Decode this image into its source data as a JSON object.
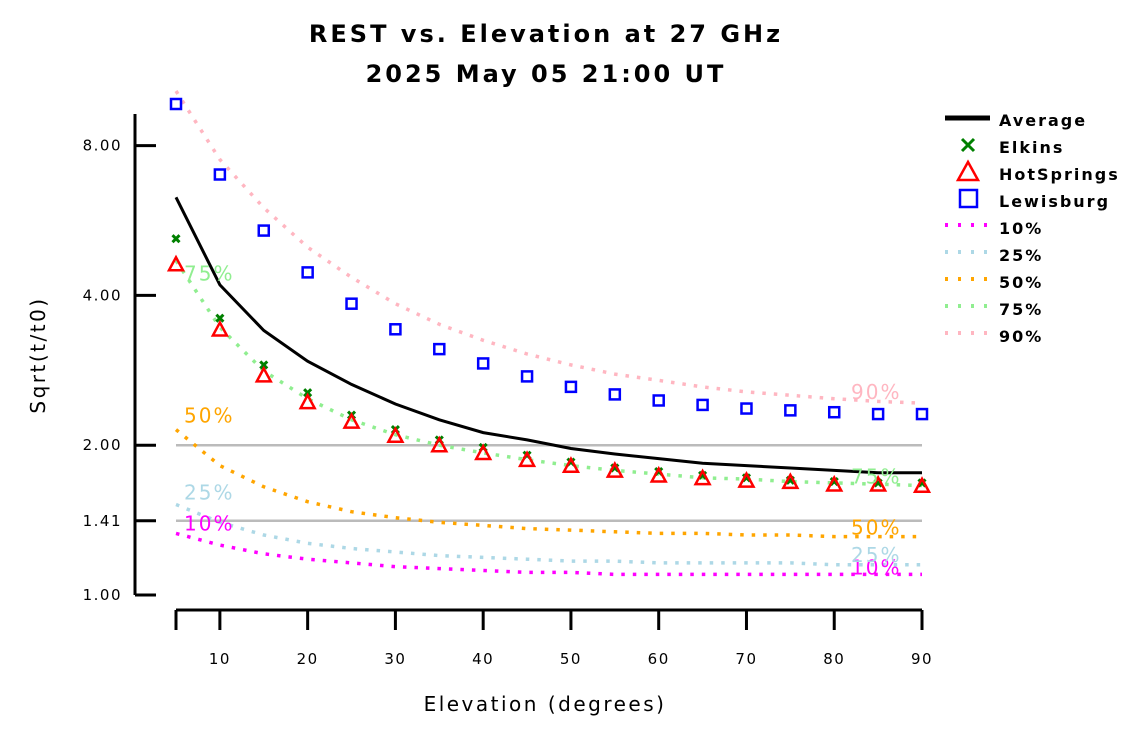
{
  "chart_data": {
    "type": "line",
    "title": "REST vs. Elevation at 27 GHz",
    "subtitle": "2025 May 05 21:00 UT",
    "xlabel": "Elevation (degrees)",
    "ylabel": "Sqrt(t/t0)",
    "y_scale": "log",
    "xlim": [
      2,
      92
    ],
    "ylim": [
      1.0,
      9.7
    ],
    "x_ticks": [
      10,
      20,
      30,
      40,
      50,
      60,
      70,
      80,
      90
    ],
    "x_tick_labels": [
      "10",
      "20",
      "30",
      "40",
      "50",
      "60",
      "70",
      "80",
      "90"
    ],
    "y_ticks": [
      1.0,
      1.41,
      2.0,
      4.0,
      8.0
    ],
    "y_tick_labels": [
      "1.00",
      "1.41",
      "2.00",
      "4.00",
      "8.00"
    ],
    "reference_lines": [
      1.41,
      2.0
    ],
    "legend_position": "right",
    "x": [
      5,
      10,
      15,
      20,
      25,
      30,
      35,
      40,
      45,
      50,
      55,
      60,
      65,
      70,
      75,
      80,
      85,
      90
    ],
    "series": [
      {
        "name": "Average",
        "style": "line",
        "color": "#000000",
        "values": [
          6.3,
          4.2,
          3.4,
          2.95,
          2.65,
          2.42,
          2.25,
          2.12,
          2.05,
          1.97,
          1.92,
          1.88,
          1.84,
          1.82,
          1.8,
          1.78,
          1.76,
          1.76
        ]
      },
      {
        "name": "Elkins",
        "style": "marker",
        "marker": "x",
        "color": "#008000",
        "values": [
          5.2,
          3.6,
          2.9,
          2.55,
          2.3,
          2.15,
          2.05,
          1.98,
          1.91,
          1.85,
          1.8,
          1.77,
          1.74,
          1.72,
          1.7,
          1.69,
          1.68,
          1.68
        ]
      },
      {
        "name": "HotSprings",
        "style": "marker",
        "marker": "triangle",
        "color": "#ff0000",
        "values": [
          4.6,
          3.4,
          2.75,
          2.43,
          2.22,
          2.08,
          1.99,
          1.92,
          1.86,
          1.81,
          1.77,
          1.73,
          1.71,
          1.69,
          1.68,
          1.66,
          1.66,
          1.65
        ]
      },
      {
        "name": "Lewisburg",
        "style": "marker",
        "marker": "square",
        "color": "#0000ff",
        "values": [
          9.7,
          7.0,
          5.4,
          4.45,
          3.85,
          3.42,
          3.12,
          2.92,
          2.75,
          2.62,
          2.53,
          2.46,
          2.41,
          2.37,
          2.35,
          2.33,
          2.31,
          2.31
        ]
      },
      {
        "name": "10%",
        "style": "dotted",
        "color": "#ff00ff",
        "label": "10%",
        "values": [
          1.33,
          1.26,
          1.21,
          1.18,
          1.16,
          1.14,
          1.13,
          1.12,
          1.11,
          1.11,
          1.1,
          1.1,
          1.1,
          1.1,
          1.1,
          1.1,
          1.1,
          1.1
        ]
      },
      {
        "name": "25%",
        "style": "dotted",
        "color": "#add8e6",
        "label": "25%",
        "values": [
          1.52,
          1.4,
          1.32,
          1.27,
          1.24,
          1.22,
          1.2,
          1.19,
          1.18,
          1.17,
          1.17,
          1.16,
          1.16,
          1.16,
          1.16,
          1.15,
          1.15,
          1.15
        ]
      },
      {
        "name": "50%",
        "style": "dotted",
        "color": "#ffa500",
        "label": "50%",
        "values": [
          2.15,
          1.82,
          1.65,
          1.54,
          1.47,
          1.43,
          1.4,
          1.38,
          1.36,
          1.35,
          1.34,
          1.33,
          1.33,
          1.32,
          1.32,
          1.31,
          1.31,
          1.31
        ]
      },
      {
        "name": "75%",
        "style": "dotted",
        "color": "#90ee90",
        "label": "75%",
        "values": [
          4.7,
          3.45,
          2.82,
          2.48,
          2.25,
          2.1,
          2.0,
          1.93,
          1.87,
          1.82,
          1.78,
          1.75,
          1.72,
          1.71,
          1.69,
          1.68,
          1.67,
          1.66
        ]
      },
      {
        "name": "90%",
        "style": "dotted",
        "color": "#ffb6c1",
        "label": "90%",
        "values": [
          10.3,
          7.5,
          6.0,
          5.0,
          4.35,
          3.85,
          3.5,
          3.25,
          3.05,
          2.9,
          2.78,
          2.7,
          2.62,
          2.56,
          2.52,
          2.48,
          2.45,
          2.43
        ]
      }
    ]
  }
}
